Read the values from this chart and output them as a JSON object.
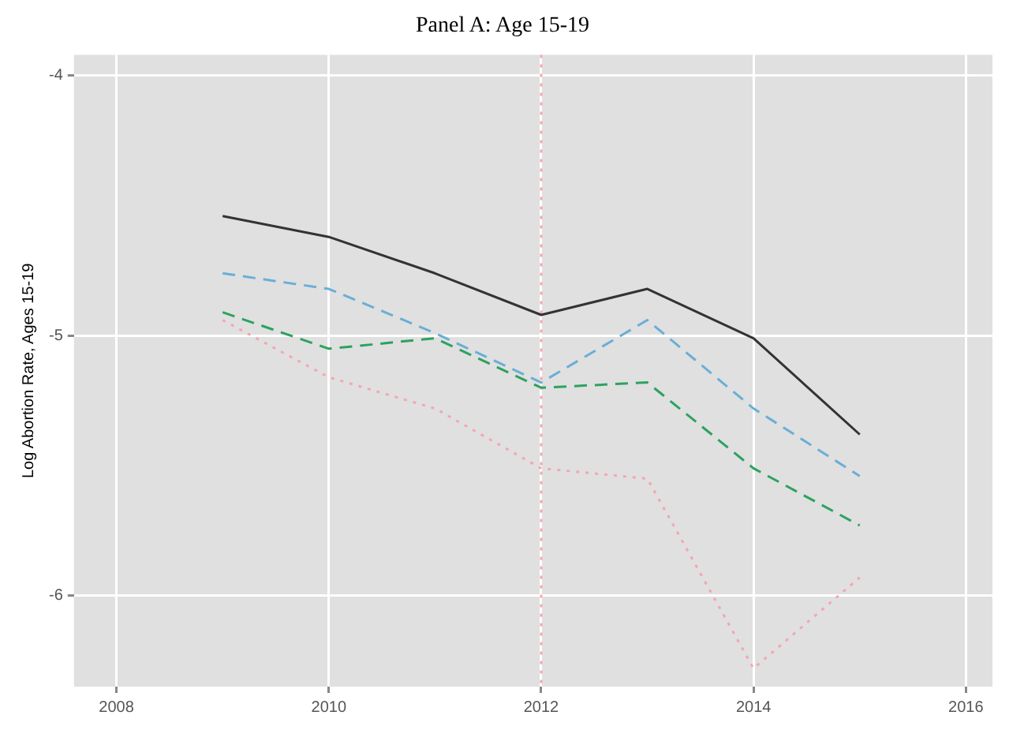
{
  "chart_data": {
    "type": "line",
    "title": "Panel A: Age 15-19",
    "ylabel": "Log Abortion Rate, Ages 15-19",
    "x": [
      2009,
      2010,
      2011,
      2012,
      2013,
      2014,
      2015
    ],
    "series": [
      {
        "color": "#333333",
        "line_style": "solid",
        "values": [
          -4.54,
          -4.62,
          -4.76,
          -4.92,
          -4.82,
          -5.01,
          -5.38
        ]
      },
      {
        "color": "#6aaed6",
        "line_style": "dashed",
        "values": [
          -4.76,
          -4.82,
          -4.99,
          -5.18,
          -4.94,
          -5.28,
          -5.54
        ]
      },
      {
        "color": "#2ca25f",
        "line_style": "dashed",
        "values": [
          -4.91,
          -5.05,
          -5.01,
          -5.2,
          -5.18,
          -5.51,
          -5.73
        ]
      },
      {
        "color": "#f4a6b0",
        "line_style": "dotted",
        "values": [
          -4.94,
          -5.16,
          -5.28,
          -5.51,
          -5.55,
          -6.28,
          -5.93
        ]
      }
    ],
    "xlim": [
      2007.6,
      2016.25
    ],
    "xticks": [
      2008,
      2010,
      2012,
      2014,
      2016
    ],
    "ylim": [
      -6.35,
      -3.92
    ],
    "yticks": [
      -6,
      -5,
      -4
    ],
    "ref_lines": [
      {
        "axis": "x",
        "value": 2012,
        "color": "#f4a6b0",
        "line_style": "dotted"
      }
    ],
    "grid": true,
    "legend": false,
    "marker": "none"
  }
}
